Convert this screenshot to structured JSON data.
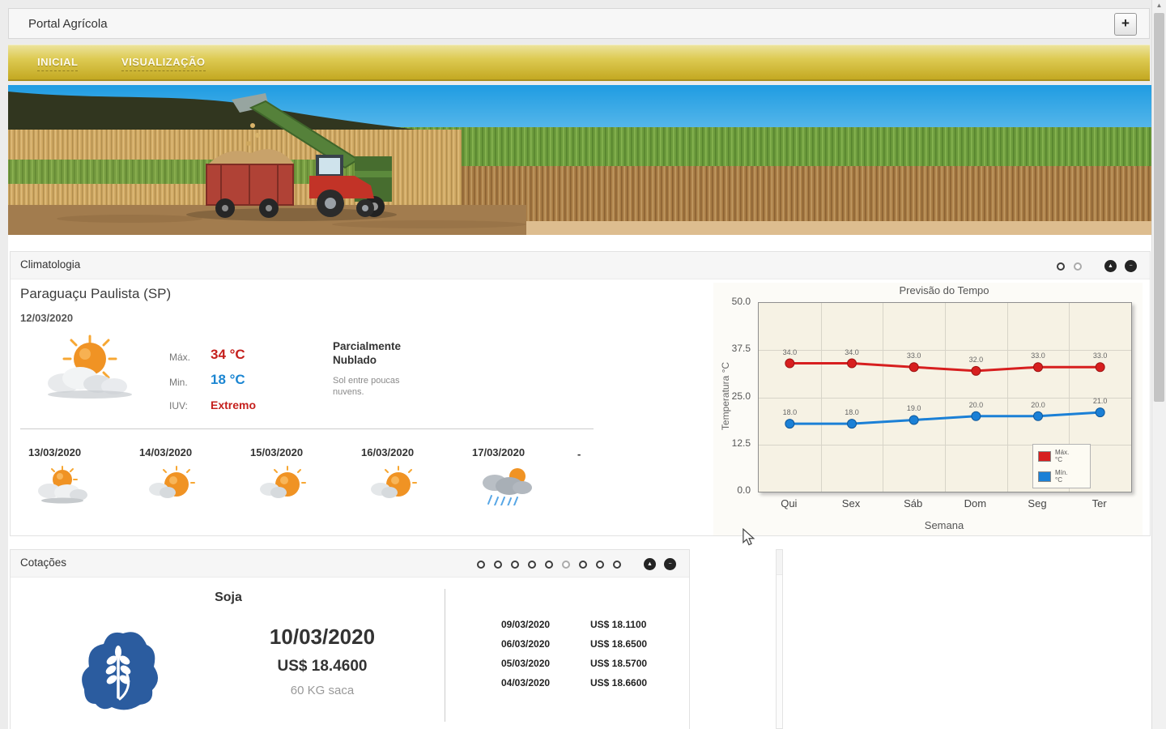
{
  "ui": {
    "scroll_up_glyph": "▲",
    "collapse_glyph": "▲",
    "minimize_glyph": "−",
    "add_glyph": "+",
    "colors": {
      "nav_gold": "#d7c33e",
      "accent_red": "#c5201d",
      "accent_blue": "#1c86d2"
    }
  },
  "header": {
    "title": "Portal Agrícola"
  },
  "nav": {
    "items": [
      {
        "label": "INICIAL"
      },
      {
        "label": "VISUALIZAÇÃO"
      }
    ]
  },
  "climatologia": {
    "panel_title": "Climatologia",
    "pager": {
      "count": 2,
      "active_index": 1
    },
    "location": "Paraguaçu Paulista (SP)",
    "date": "12/03/2020",
    "current": {
      "icon": "sun-with-clouds",
      "max_label": "Máx.",
      "max_value": "34 °C",
      "min_label": "Min.",
      "min_value": "18 °C",
      "iuv_label": "IUV:",
      "iuv_value": "Extremo",
      "condition_title": "Parcialmente Nublado",
      "condition_text": "Sol entre poucas nuvens."
    },
    "forecast": [
      {
        "date": "13/03/2020",
        "icon": "sun-behind-clouds"
      },
      {
        "date": "14/03/2020",
        "icon": "sun-small-cloud"
      },
      {
        "date": "15/03/2020",
        "icon": "sun-small-cloud"
      },
      {
        "date": "16/03/2020",
        "icon": "sun-small-cloud"
      },
      {
        "date": "17/03/2020",
        "icon": "rain-showers"
      }
    ],
    "forecast_more": "-"
  },
  "chart_data": {
    "type": "line",
    "title": "Previsão do Tempo",
    "xlabel": "Semana",
    "ylabel": "Temperatura °C",
    "categories": [
      "Qui",
      "Sex",
      "Sáb",
      "Dom",
      "Seg",
      "Ter"
    ],
    "series": [
      {
        "name": "Máx. °C",
        "color": "#d71f1f",
        "edge": "#9e1414",
        "values": [
          34,
          34,
          33,
          32,
          33,
          33
        ]
      },
      {
        "name": "Mín. °C",
        "color": "#1b80d6",
        "edge": "#10589a",
        "values": [
          18,
          18,
          19,
          20,
          20,
          21
        ]
      }
    ],
    "ylim": [
      0,
      50
    ],
    "yticks": [
      0,
      12.5,
      25,
      37.5,
      50
    ],
    "grid": true,
    "legend_position": "bottom-right",
    "point_labels": true
  },
  "cotacoes": {
    "panel_title": "Cotações",
    "pager": {
      "count": 9,
      "active_index": 5
    },
    "commodity": "Soja",
    "icon": "soy-commodity",
    "quote_date": "10/03/2020",
    "quote_price": "US$ 18.4600",
    "quote_unit": "60 KG saca",
    "history": [
      {
        "date": "09/03/2020",
        "price": "US$ 18.1100"
      },
      {
        "date": "06/03/2020",
        "price": "US$ 18.6500"
      },
      {
        "date": "05/03/2020",
        "price": "US$ 18.5700"
      },
      {
        "date": "04/03/2020",
        "price": "US$ 18.6600"
      }
    ]
  }
}
